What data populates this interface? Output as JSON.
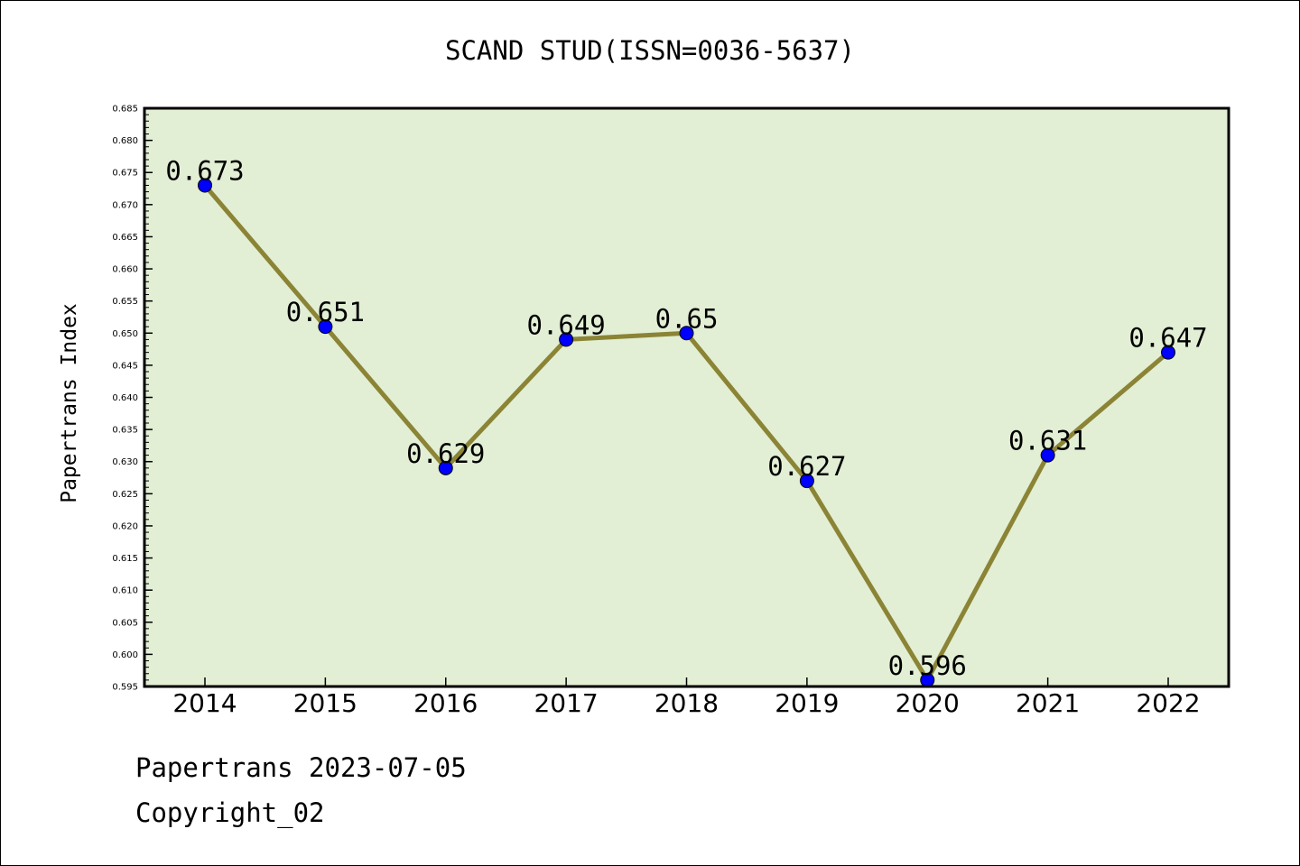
{
  "chart_data": {
    "type": "line",
    "title": "SCAND STUD(ISSN=0036-5637)",
    "xlabel": "",
    "ylabel": "Papertrans Index",
    "categories": [
      "2014",
      "2015",
      "2016",
      "2017",
      "2018",
      "2019",
      "2020",
      "2021",
      "2022"
    ],
    "values": [
      0.673,
      0.651,
      0.629,
      0.649,
      0.65,
      0.627,
      0.596,
      0.631,
      0.647
    ],
    "data_labels": [
      "0.673",
      "0.651",
      "0.629",
      "0.649",
      "0.65",
      "0.627",
      "0.596",
      "0.631",
      "0.647"
    ],
    "ylim": [
      0.595,
      0.685
    ],
    "yticks": [
      "0.595",
      "0.600",
      "0.605",
      "0.610",
      "0.615",
      "0.620",
      "0.625",
      "0.630",
      "0.635",
      "0.640",
      "0.645",
      "0.650",
      "0.655",
      "0.660",
      "0.665",
      "0.670",
      "0.675",
      "0.680",
      "0.685"
    ],
    "grid": false,
    "colors": {
      "plot_background": "#e2efd5",
      "line": "#8b8435",
      "marker": "#0000ff"
    }
  },
  "footer": {
    "source": "Papertrans 2023-07-05",
    "copyright": "Copyright_02"
  }
}
